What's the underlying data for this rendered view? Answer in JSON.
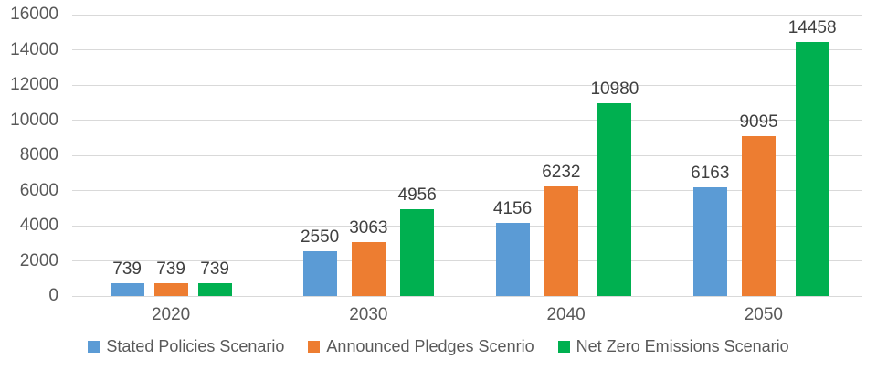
{
  "chart_data": {
    "type": "bar",
    "title": "",
    "categories": [
      "2020",
      "2030",
      "2040",
      "2050"
    ],
    "series": [
      {
        "name": "Stated Policies Scenario",
        "color": "#5B9BD5",
        "values": [
          739,
          2550,
          4156,
          6163
        ]
      },
      {
        "name": "Announced Pledges Scenrio",
        "color": "#ED7D31",
        "values": [
          739,
          3063,
          6232,
          9095
        ]
      },
      {
        "name": "Net Zero Emissions Scenario",
        "color": "#00B050",
        "values": [
          739,
          4956,
          10980,
          14458
        ]
      }
    ],
    "ylim": [
      0,
      16000
    ],
    "ytick_step": 2000,
    "ytick_labels": [
      "0",
      "2000",
      "4000",
      "6000",
      "8000",
      "10000",
      "12000",
      "14000",
      "16000"
    ],
    "grid": true,
    "data_labels": true,
    "legend_position": "bottom",
    "xlabel": "",
    "ylabel": ""
  },
  "style_colors": {
    "gridline": "#d9d9d9",
    "axis_text": "#595959",
    "data_label_text": "#404040",
    "legend_text": "#595959",
    "background": "#ffffff"
  }
}
